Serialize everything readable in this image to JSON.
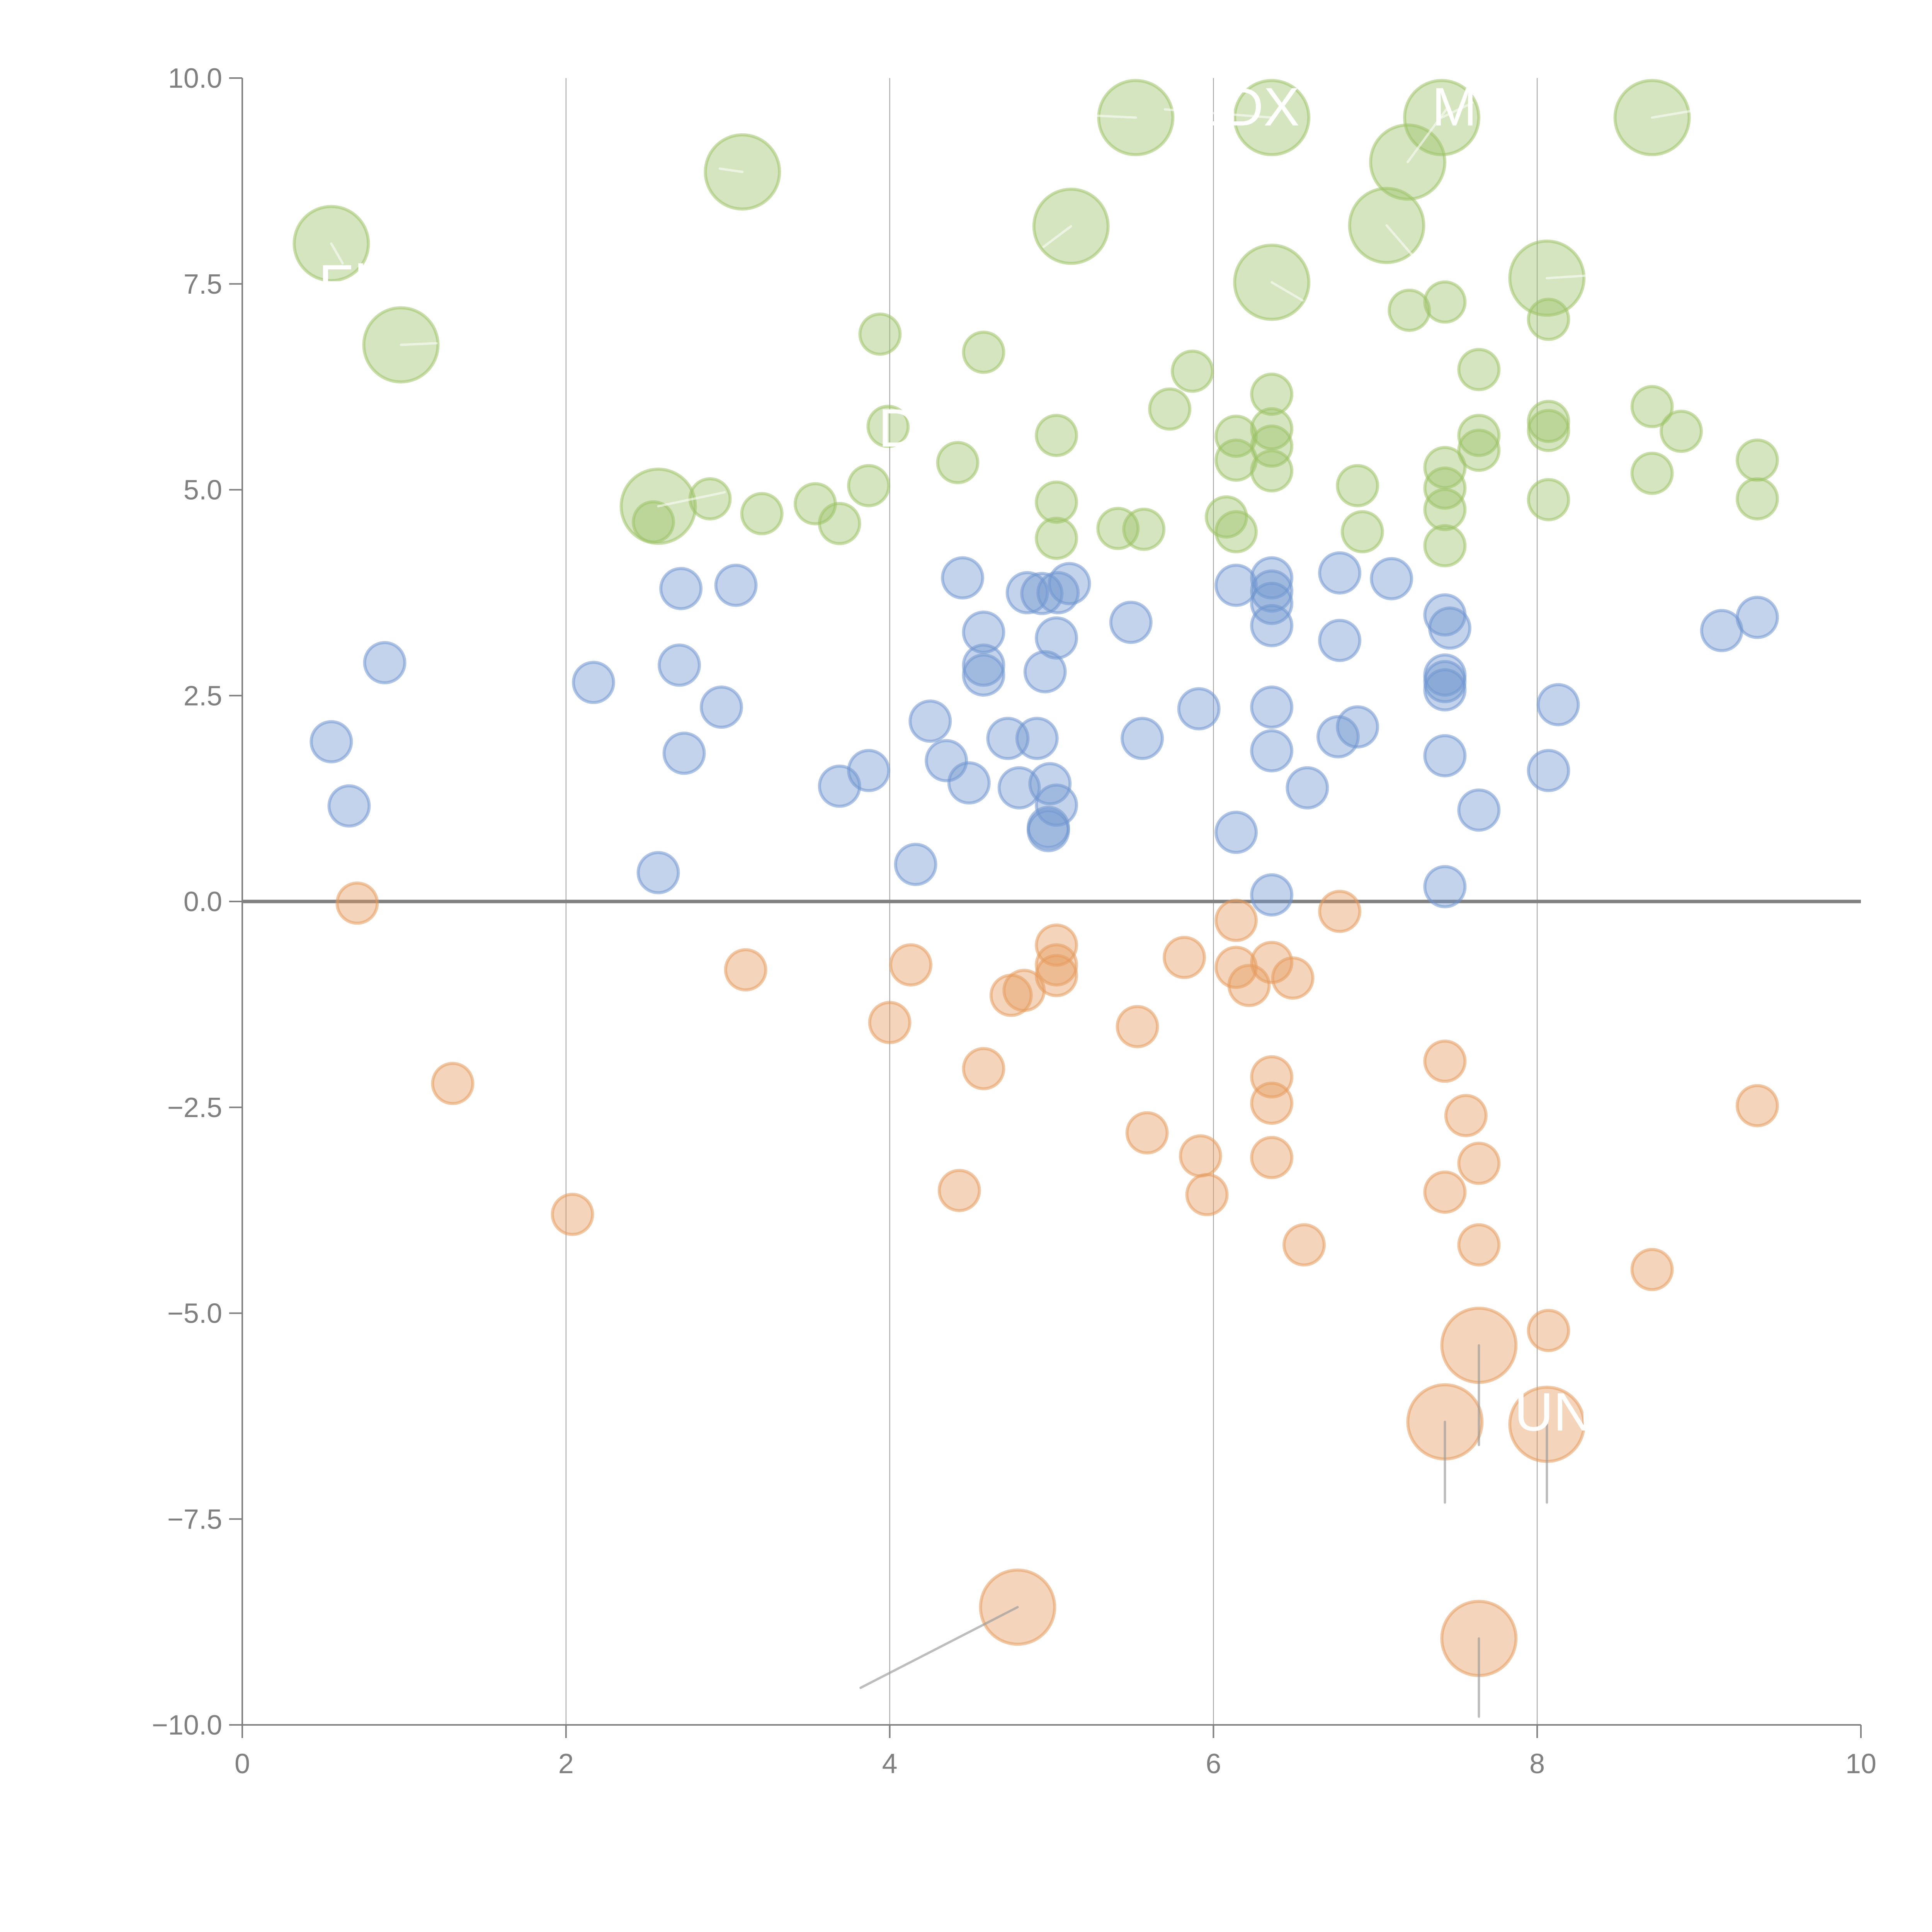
{
  "chart_data": {
    "type": "scatter",
    "title": "",
    "xlabel": "",
    "ylabel": "",
    "xlim": [
      0,
      10
    ],
    "ylim": [
      -10,
      10
    ],
    "x_ticks": [
      0,
      2,
      4,
      6,
      8,
      10
    ],
    "x_tick_labels": [
      "0",
      "2",
      "4",
      "6",
      "8",
      "10"
    ],
    "y_ticks": [
      10,
      7.5,
      5,
      2.5,
      0,
      -2.5,
      -5,
      -7.5,
      -10
    ],
    "y_tick_labels": [
      "10.0",
      "7.5",
      "5.0",
      "2.5",
      "0.0",
      "−2.5",
      "−5.0",
      "−7.5",
      "−10.0"
    ],
    "vertical_gridlines_at": [
      2,
      4,
      6,
      8
    ],
    "reference_line_y": 0,
    "legend": null,
    "colors": {
      "green": "#9cc266",
      "blue": "#6f96cf",
      "orange": "#e59a5c"
    },
    "series": [
      {
        "name": "green",
        "color_key": "green",
        "size": "small",
        "points": [
          [
            3.94,
            6.89
          ],
          [
            4.58,
            6.67
          ],
          [
            3.99,
            5.77
          ],
          [
            2.89,
            4.89
          ],
          [
            2.54,
            4.61
          ],
          [
            3.21,
            4.71
          ],
          [
            3.54,
            4.83
          ],
          [
            3.87,
            5.05
          ],
          [
            3.69,
            4.59
          ],
          [
            4.42,
            5.33
          ],
          [
            5.03,
            5.66
          ],
          [
            5.03,
            4.85
          ],
          [
            5.03,
            4.41
          ],
          [
            5.41,
            4.53
          ],
          [
            5.57,
            4.52
          ],
          [
            5.73,
            5.98
          ],
          [
            5.87,
            6.44
          ],
          [
            6.14,
            5.65
          ],
          [
            6.14,
            5.36
          ],
          [
            6.08,
            4.67
          ],
          [
            6.14,
            4.49
          ],
          [
            6.36,
            6.16
          ],
          [
            6.36,
            5.74
          ],
          [
            6.36,
            5.53
          ],
          [
            6.36,
            5.23
          ],
          [
            6.89,
            5.05
          ],
          [
            6.92,
            4.49
          ],
          [
            7.21,
            7.18
          ],
          [
            7.43,
            7.28
          ],
          [
            7.43,
            5.27
          ],
          [
            7.43,
            5.02
          ],
          [
            7.43,
            4.76
          ],
          [
            7.43,
            4.32
          ],
          [
            7.64,
            6.46
          ],
          [
            7.64,
            5.66
          ],
          [
            7.64,
            5.48
          ],
          [
            8.07,
            7.07
          ],
          [
            8.07,
            5.83
          ],
          [
            8.07,
            5.72
          ],
          [
            8.07,
            4.88
          ],
          [
            8.71,
            6.01
          ],
          [
            8.71,
            5.2
          ],
          [
            8.89,
            5.71
          ],
          [
            9.36,
            5.36
          ],
          [
            9.36,
            4.89
          ]
        ]
      },
      {
        "name": "green-large",
        "color_key": "green",
        "size": "large",
        "points": [
          [
            0.55,
            7.99
          ],
          [
            0.98,
            6.76
          ],
          [
            3.09,
            8.86
          ],
          [
            2.57,
            4.8
          ],
          [
            5.52,
            9.52
          ],
          [
            5.12,
            8.2
          ],
          [
            6.36,
            9.52
          ],
          [
            7.41,
            9.52
          ],
          [
            7.2,
            8.98
          ],
          [
            7.07,
            8.21
          ],
          [
            6.36,
            7.52
          ],
          [
            8.06,
            7.57
          ],
          [
            8.71,
            9.52
          ]
        ]
      },
      {
        "name": "blue",
        "color_key": "blue",
        "size": "small",
        "points": [
          [
            0.55,
            1.94
          ],
          [
            0.66,
            1.16
          ],
          [
            0.88,
            2.9
          ],
          [
            2.17,
            2.66
          ],
          [
            2.57,
            0.35
          ],
          [
            2.71,
            3.8
          ],
          [
            2.7,
            2.87
          ],
          [
            2.73,
            1.8
          ],
          [
            2.96,
            2.36
          ],
          [
            3.05,
            3.84
          ],
          [
            3.69,
            1.4
          ],
          [
            3.87,
            1.59
          ],
          [
            4.16,
            0.45
          ],
          [
            4.25,
            2.19
          ],
          [
            4.35,
            1.71
          ],
          [
            4.49,
            1.44
          ],
          [
            4.45,
            3.93
          ],
          [
            4.58,
            3.27
          ],
          [
            4.58,
            2.87
          ],
          [
            4.58,
            2.75
          ],
          [
            4.73,
            1.98
          ],
          [
            4.8,
            1.38
          ],
          [
            4.85,
            3.75
          ],
          [
            4.91,
            1.98
          ],
          [
            4.94,
            3.74
          ],
          [
            4.96,
            2.79
          ],
          [
            4.99,
            1.43
          ],
          [
            5.03,
            3.2
          ],
          [
            5.04,
            3.75
          ],
          [
            5.03,
            1.17
          ],
          [
            4.98,
            0.9
          ],
          [
            4.98,
            0.86
          ],
          [
            5.11,
            3.86
          ],
          [
            5.49,
            3.39
          ],
          [
            5.56,
            1.98
          ],
          [
            5.91,
            2.34
          ],
          [
            6.14,
            3.84
          ],
          [
            6.14,
            0.84
          ],
          [
            6.36,
            3.93
          ],
          [
            6.36,
            3.77
          ],
          [
            6.36,
            3.62
          ],
          [
            6.36,
            3.35
          ],
          [
            6.36,
            2.36
          ],
          [
            6.36,
            1.83
          ],
          [
            6.36,
            0.08
          ],
          [
            6.58,
            1.38
          ],
          [
            6.78,
            3.99
          ],
          [
            6.78,
            3.17
          ],
          [
            6.77,
            2.0
          ],
          [
            6.89,
            2.12
          ],
          [
            7.1,
            3.92
          ],
          [
            7.43,
            3.48
          ],
          [
            7.46,
            3.32
          ],
          [
            7.43,
            2.75
          ],
          [
            7.43,
            2.67
          ],
          [
            7.43,
            2.57
          ],
          [
            7.43,
            1.77
          ],
          [
            7.43,
            0.18
          ],
          [
            7.64,
            1.11
          ],
          [
            8.07,
            1.59
          ],
          [
            8.13,
            2.39
          ],
          [
            9.14,
            3.29
          ],
          [
            9.36,
            3.45
          ]
        ]
      },
      {
        "name": "orange",
        "color_key": "orange",
        "size": "small",
        "points": [
          [
            0.71,
            -0.02
          ],
          [
            1.3,
            -2.21
          ],
          [
            2.04,
            -3.8
          ],
          [
            3.11,
            -0.83
          ],
          [
            4.0,
            -1.47
          ],
          [
            4.13,
            -0.77
          ],
          [
            4.43,
            -3.51
          ],
          [
            4.58,
            -2.03
          ],
          [
            4.75,
            -1.14
          ],
          [
            4.83,
            -1.08
          ],
          [
            5.03,
            -0.53
          ],
          [
            5.03,
            -0.77
          ],
          [
            5.03,
            -0.9
          ],
          [
            5.53,
            -1.52
          ],
          [
            5.59,
            -2.81
          ],
          [
            5.82,
            -0.68
          ],
          [
            5.92,
            -3.09
          ],
          [
            5.96,
            -3.56
          ],
          [
            6.14,
            -0.23
          ],
          [
            6.14,
            -0.8
          ],
          [
            6.22,
            -1.02
          ],
          [
            6.36,
            -0.74
          ],
          [
            6.49,
            -0.93
          ],
          [
            6.36,
            -2.13
          ],
          [
            6.36,
            -2.45
          ],
          [
            6.36,
            -3.11
          ],
          [
            6.56,
            -4.17
          ],
          [
            6.78,
            -0.12
          ],
          [
            7.43,
            -1.94
          ],
          [
            7.56,
            -2.6
          ],
          [
            7.64,
            -3.18
          ],
          [
            7.43,
            -3.53
          ],
          [
            7.64,
            -4.17
          ],
          [
            8.07,
            -5.21
          ],
          [
            8.71,
            -4.47
          ],
          [
            9.36,
            -2.48
          ]
        ]
      },
      {
        "name": "orange-large",
        "color_key": "orange",
        "size": "large",
        "points": [
          [
            7.64,
            -5.39
          ],
          [
            7.43,
            -6.32
          ],
          [
            8.06,
            -6.35
          ],
          [
            4.79,
            -8.57
          ],
          [
            7.64,
            -8.95
          ]
        ]
      }
    ],
    "annotations": [
      {
        "text": "El",
        "x": 0.55,
        "y": 7.99,
        "label_x": 0.62,
        "label_y": 7.5,
        "connector": "light"
      },
      {
        "text": "D",
        "x": 3.99,
        "y": 5.77,
        "label_x": 4.05,
        "label_y": 5.75,
        "connector": "none"
      },
      {
        "text": "L",
        "x": 5.52,
        "y": 9.52,
        "label_x": 5.95,
        "label_y": 9.65,
        "connector": "light"
      },
      {
        "text": "DX",
        "x": 6.36,
        "y": 9.52,
        "label_x": 6.3,
        "label_y": 9.65,
        "connector": "light"
      },
      {
        "text": "MB",
        "x": 7.41,
        "y": 9.52,
        "label_x": 7.6,
        "label_y": 9.65,
        "connector": "light"
      },
      {
        "text": "UN",
        "x": 8.06,
        "y": -6.35,
        "label_x": 8.1,
        "label_y": -6.2,
        "connector": "dark"
      }
    ],
    "connectors": [
      {
        "from": [
          0.55,
          7.99
        ],
        "to": [
          0.62,
          7.75
        ],
        "style": "light"
      },
      {
        "from": [
          0.98,
          6.76
        ],
        "to": [
          1.2,
          6.78
        ],
        "style": "light"
      },
      {
        "from": [
          3.09,
          8.86
        ],
        "to": [
          2.95,
          8.9
        ],
        "style": "light"
      },
      {
        "from": [
          2.57,
          4.8
        ],
        "to": [
          2.98,
          4.97
        ],
        "style": "light"
      },
      {
        "from": [
          5.12,
          8.2
        ],
        "to": [
          4.95,
          7.95
        ],
        "style": "light"
      },
      {
        "from": [
          5.52,
          9.52
        ],
        "to": [
          5.2,
          9.55
        ],
        "style": "light"
      },
      {
        "from": [
          6.36,
          9.52
        ],
        "to": [
          5.7,
          9.62
        ],
        "style": "light"
      },
      {
        "from": [
          7.41,
          9.52
        ],
        "to": [
          7.6,
          9.7
        ],
        "style": "light"
      },
      {
        "from": [
          7.2,
          8.98
        ],
        "to": [
          7.45,
          9.65
        ],
        "style": "light"
      },
      {
        "from": [
          7.07,
          8.21
        ],
        "to": [
          7.25,
          7.8
        ],
        "style": "light"
      },
      {
        "from": [
          6.36,
          7.52
        ],
        "to": [
          6.55,
          7.3
        ],
        "style": "light"
      },
      {
        "from": [
          8.06,
          7.57
        ],
        "to": [
          8.3,
          7.6
        ],
        "style": "light"
      },
      {
        "from": [
          8.71,
          9.52
        ],
        "to": [
          8.95,
          9.6
        ],
        "style": "light"
      },
      {
        "from": [
          7.64,
          -5.39
        ],
        "to": [
          7.64,
          -6.6
        ],
        "style": "dark"
      },
      {
        "from": [
          7.43,
          -6.32
        ],
        "to": [
          7.43,
          -7.3
        ],
        "style": "dark"
      },
      {
        "from": [
          8.06,
          -6.35
        ],
        "to": [
          8.06,
          -7.3
        ],
        "style": "dark"
      },
      {
        "from": [
          4.79,
          -8.57
        ],
        "to": [
          3.82,
          -9.55
        ],
        "style": "dark"
      },
      {
        "from": [
          7.64,
          -8.95
        ],
        "to": [
          7.64,
          -9.9
        ],
        "style": "dark"
      }
    ]
  }
}
